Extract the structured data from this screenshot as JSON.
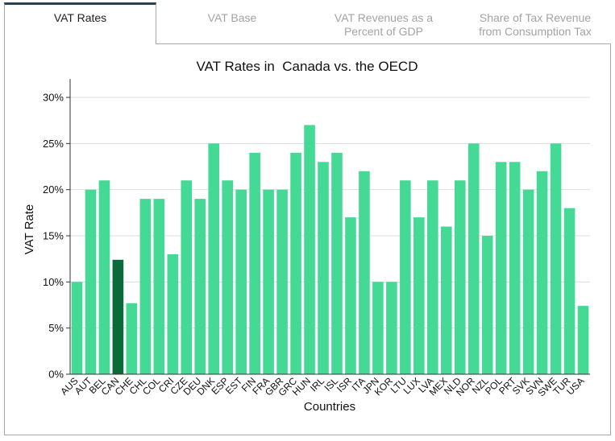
{
  "tabs": [
    {
      "lines": [
        "VAT Rates"
      ],
      "active": true
    },
    {
      "lines": [
        "VAT Base"
      ],
      "active": false
    },
    {
      "lines": [
        "VAT Revenues as a",
        "Percent of GDP"
      ],
      "active": false
    },
    {
      "lines": [
        "Share of Tax Revenue",
        "from Consumption Tax"
      ],
      "active": false
    }
  ],
  "colors": {
    "bar": "#44d995",
    "highlight": "#0b6a3a",
    "active_tab_accent": "#24405f"
  },
  "chart_data": {
    "type": "bar",
    "title": "VAT Rates in  Canada vs. the OECD",
    "xlabel": "Countries",
    "ylabel": "VAT Rate",
    "categories": [
      "AUS",
      "AUT",
      "BEL",
      "CAN",
      "CHE",
      "CHL",
      "COL",
      "CRI",
      "CZE",
      "DEU",
      "DNK",
      "ESP",
      "EST",
      "FIN",
      "FRA",
      "GBR",
      "GRC",
      "HUN",
      "IRL",
      "ISL",
      "ISR",
      "ITA",
      "JPN",
      "KOR",
      "LTU",
      "LUX",
      "LVA",
      "MEX",
      "NLD",
      "NOR",
      "NZL",
      "POL",
      "PRT",
      "SVK",
      "SVN",
      "SWE",
      "TUR",
      "USA"
    ],
    "values": [
      10,
      20,
      21,
      12.4,
      7.7,
      19,
      19,
      13,
      21,
      19,
      25,
      21,
      20,
      24,
      20,
      20,
      24,
      27,
      23,
      24,
      17,
      22,
      10,
      10,
      21,
      17,
      21,
      16,
      21,
      25,
      15,
      23,
      23,
      20,
      22,
      25,
      18,
      7.4
    ],
    "highlight_index": 3,
    "ylim": [
      0,
      32
    ],
    "yticks": [
      {
        "value": 0,
        "label": "0%"
      },
      {
        "value": 5,
        "label": "5%"
      },
      {
        "value": 10,
        "label": "10%"
      },
      {
        "value": 15,
        "label": "15%"
      },
      {
        "value": 20,
        "label": "20%"
      },
      {
        "value": 25,
        "label": "25%"
      },
      {
        "value": 30,
        "label": "30%"
      }
    ],
    "grid": true
  }
}
